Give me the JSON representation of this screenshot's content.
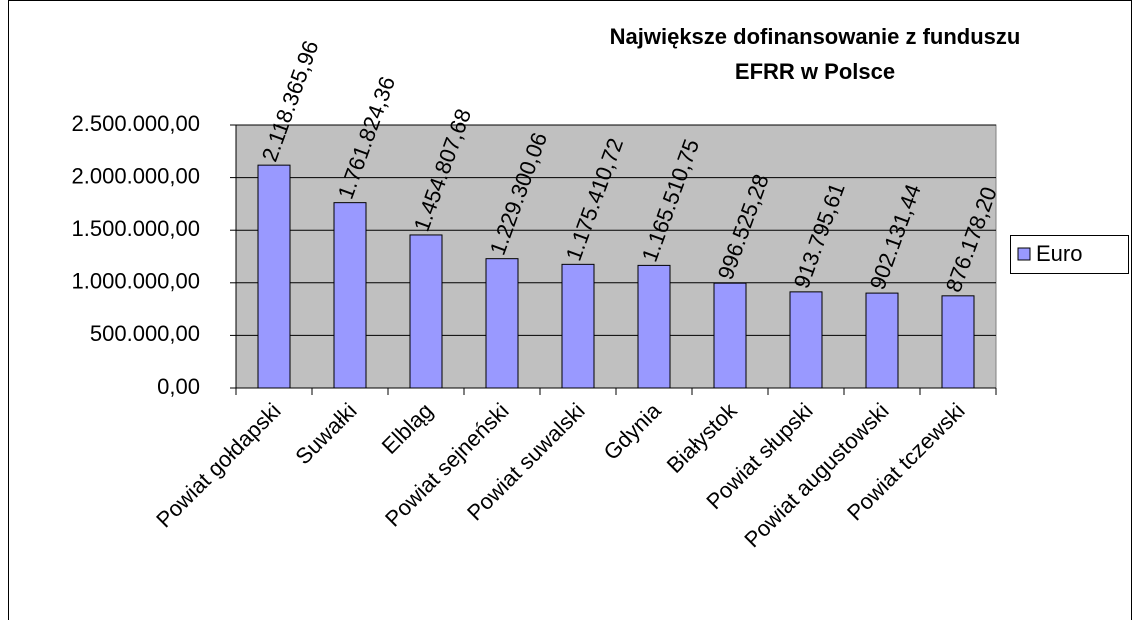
{
  "chart_data": {
    "type": "bar",
    "title": [
      "Największe dofinansowanie z funduszu",
      "EFRR w Polsce"
    ],
    "categories": [
      "Powiat gołdapski",
      "Suwałki",
      "Elbląg",
      "Powiat sejneński",
      "Powiat suwalski",
      "Gdynia",
      "Białystok",
      "Powiat słupski",
      "Powiat augustowski",
      "Powiat tczewski"
    ],
    "series": [
      {
        "name": "Euro",
        "color": "#9999ff",
        "values": [
          2118365.96,
          1761824.36,
          1454807.68,
          1229300.06,
          1175410.72,
          1165510.75,
          996525.28,
          913795.61,
          902131.44,
          876178.2
        ],
        "value_labels": [
          "2.118.365,96",
          "1.761.824,36",
          "1.454.807,68",
          "1.229.300,06",
          "1.175.410,72",
          "1.165.510,75",
          "996.525,28",
          "913.795,61",
          "902.131,44",
          "876.178,20"
        ]
      }
    ],
    "ylim": [
      0,
      2500000
    ],
    "yticks": [
      {
        "value": 0,
        "label": "0,00"
      },
      {
        "value": 500000,
        "label": "500.000,00"
      },
      {
        "value": 1000000,
        "label": "1.000.000,00"
      },
      {
        "value": 1500000,
        "label": "1.500.000,00"
      },
      {
        "value": 2000000,
        "label": "2.000.000,00"
      },
      {
        "value": 2500000,
        "label": "2.500.000,00"
      }
    ],
    "grid": true,
    "legend": "right",
    "plot_background": "#c0c0c0"
  }
}
